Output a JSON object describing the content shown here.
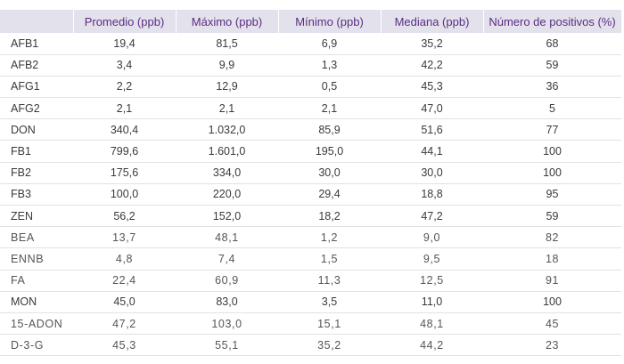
{
  "table": {
    "headers": [
      "",
      "Promedio (ppb)",
      "Máximo (ppb)",
      "Mínimo (ppb)",
      "Mediana (ppb)",
      "Número de positivos (%)"
    ],
    "rows": [
      {
        "name": "AFB1",
        "promedio": "19,4",
        "maximo": "81,5",
        "minimo": "6,9",
        "mediana": "35,2",
        "positivos": "68"
      },
      {
        "name": "AFB2",
        "promedio": "3,4",
        "maximo": "9,9",
        "minimo": "1,3",
        "mediana": "42,2",
        "positivos": "59"
      },
      {
        "name": "AFG1",
        "promedio": "2,2",
        "maximo": "12,9",
        "minimo": "0,5",
        "mediana": "45,3",
        "positivos": "36"
      },
      {
        "name": "AFG2",
        "promedio": "2,1",
        "maximo": "2,1",
        "minimo": "2,1",
        "mediana": "47,0",
        "positivos": "5"
      },
      {
        "name": "DON",
        "promedio": "340,4",
        "maximo": "1.032,0",
        "minimo": "85,9",
        "mediana": "51,6",
        "positivos": "77"
      },
      {
        "name": "FB1",
        "promedio": "799,6",
        "maximo": "1.601,0",
        "minimo": "195,0",
        "mediana": "44,1",
        "positivos": "100"
      },
      {
        "name": "FB2",
        "promedio": "175,6",
        "maximo": "334,0",
        "minimo": "30,0",
        "mediana": "30,0",
        "positivos": "100"
      },
      {
        "name": "FB3",
        "promedio": "100,0",
        "maximo": "220,0",
        "minimo": "29,4",
        "mediana": "18,8",
        "positivos": "95"
      },
      {
        "name": "ZEN",
        "promedio": "56,2",
        "maximo": "152,0",
        "minimo": "18,2",
        "mediana": "47,2",
        "positivos": "59"
      },
      {
        "name": "BEA",
        "promedio": "13,7",
        "maximo": "48,1",
        "minimo": "1,2",
        "mediana": "9,0",
        "positivos": "82"
      },
      {
        "name": "ENNB",
        "promedio": "4,8",
        "maximo": "7,4",
        "minimo": "1,5",
        "mediana": "9,5",
        "positivos": "18"
      },
      {
        "name": "FA",
        "promedio": "22,4",
        "maximo": "60,9",
        "minimo": "11,3",
        "mediana": "12,5",
        "positivos": "91"
      },
      {
        "name": "MON",
        "promedio": "45,0",
        "maximo": "83,0",
        "minimo": "3,5",
        "mediana": "11,0",
        "positivos": "100"
      },
      {
        "name": "15-ADON",
        "promedio": "47,2",
        "maximo": "103,0",
        "minimo": "15,1",
        "mediana": "48,1",
        "positivos": "45"
      },
      {
        "name": "D-3-G",
        "promedio": "45,3",
        "maximo": "55,1",
        "minimo": "35,2",
        "mediana": "44,2",
        "positivos": "23"
      }
    ]
  }
}
